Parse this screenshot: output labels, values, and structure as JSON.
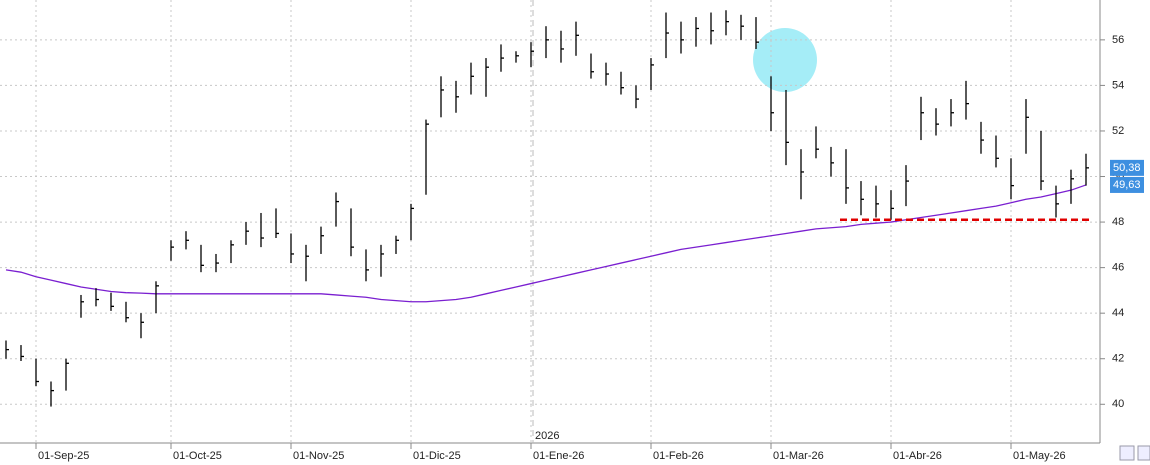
{
  "chart_data": {
    "type": "ohlc",
    "year_label": "2026",
    "categories": [
      null,
      null,
      "01-Sep-25",
      null,
      null,
      null,
      null,
      null,
      null,
      null,
      null,
      "01-Oct-25",
      null,
      null,
      null,
      null,
      null,
      null,
      null,
      "01-Nov-25",
      null,
      null,
      null,
      null,
      null,
      null,
      null,
      "01-Dic-25",
      null,
      null,
      null,
      null,
      null,
      null,
      null,
      "01-Ene-26",
      null,
      null,
      null,
      null,
      null,
      null,
      null,
      "01-Feb-26",
      null,
      null,
      null,
      null,
      null,
      null,
      null,
      "01-Mar-26",
      null,
      null,
      null,
      null,
      null,
      null,
      null,
      "01-Abr-26",
      null,
      null,
      null,
      null,
      null,
      null,
      null,
      "01-May-26",
      null,
      null,
      null,
      null,
      null
    ],
    "ohlc": {
      "color": "#000000",
      "high": [
        42.8,
        42.6,
        42.0,
        41.0,
        42.0,
        44.8,
        45.1,
        44.9,
        44.5,
        44.0,
        45.4,
        47.2,
        47.6,
        47.0,
        46.6,
        47.2,
        48.0,
        48.4,
        48.6,
        47.5,
        47.0,
        47.8,
        49.3,
        48.6,
        46.8,
        47.0,
        47.4,
        48.8,
        52.5,
        54.4,
        54.2,
        55.0,
        55.2,
        55.8,
        55.5,
        55.9,
        56.6,
        56.4,
        56.8,
        55.4,
        55.0,
        54.6,
        54.0,
        55.2,
        57.2,
        56.8,
        57.0,
        57.2,
        57.3,
        57.1,
        57.0,
        54.4,
        53.8,
        51.2,
        52.2,
        51.3,
        51.2,
        49.8,
        49.6,
        49.4,
        50.5,
        53.5,
        53.0,
        53.4,
        54.2,
        52.4,
        51.8,
        50.8,
        53.4,
        52.0,
        49.6,
        50.3,
        51.0
      ],
      "low": [
        42.0,
        41.9,
        40.8,
        39.9,
        40.6,
        43.8,
        44.3,
        44.1,
        43.6,
        42.9,
        44.0,
        46.3,
        46.8,
        45.8,
        45.8,
        46.2,
        47.0,
        46.9,
        47.3,
        46.2,
        45.4,
        46.6,
        47.8,
        46.5,
        45.4,
        45.6,
        46.6,
        47.2,
        49.2,
        52.6,
        52.8,
        53.6,
        53.5,
        54.6,
        55.0,
        54.8,
        55.2,
        55.0,
        55.3,
        54.3,
        54.0,
        53.6,
        53.0,
        53.8,
        55.2,
        55.4,
        55.7,
        55.8,
        56.2,
        56.0,
        55.6,
        52.0,
        50.5,
        49.0,
        50.8,
        50.0,
        48.8,
        48.3,
        48.2,
        48.1,
        48.7,
        51.6,
        51.8,
        52.2,
        52.5,
        51.0,
        50.4,
        49.0,
        51.0,
        49.4,
        48.2,
        48.8,
        49.6
      ],
      "close": [
        42.4,
        42.1,
        41.0,
        40.6,
        41.8,
        44.5,
        44.6,
        44.3,
        43.8,
        43.6,
        45.2,
        46.9,
        47.2,
        46.1,
        46.2,
        47.0,
        47.6,
        47.3,
        47.5,
        46.6,
        46.5,
        47.4,
        48.9,
        46.9,
        45.9,
        46.6,
        47.2,
        48.6,
        52.3,
        53.8,
        53.5,
        54.4,
        54.8,
        55.2,
        55.3,
        55.5,
        56.0,
        55.6,
        56.2,
        54.6,
        54.5,
        53.9,
        53.4,
        54.9,
        56.3,
        56.0,
        56.5,
        56.4,
        56.8,
        56.6,
        55.9,
        52.8,
        51.5,
        50.2,
        51.2,
        50.6,
        49.5,
        49.0,
        48.8,
        48.6,
        49.8,
        52.8,
        52.3,
        52.8,
        53.2,
        51.6,
        50.8,
        49.6,
        52.6,
        49.8,
        48.8,
        49.9,
        50.38
      ]
    },
    "lines": [
      {
        "color": "#7a1fd0",
        "values": [
          45.9,
          45.8,
          45.6,
          45.45,
          45.3,
          45.15,
          45.05,
          44.95,
          44.9,
          44.88,
          44.85,
          44.85,
          44.85,
          44.85,
          44.85,
          44.85,
          44.85,
          44.85,
          44.85,
          44.85,
          44.85,
          44.85,
          44.8,
          44.75,
          44.7,
          44.6,
          44.55,
          44.5,
          44.5,
          44.55,
          44.6,
          44.7,
          44.85,
          45.0,
          45.15,
          45.3,
          45.45,
          45.6,
          45.75,
          45.9,
          46.05,
          46.2,
          46.35,
          46.5,
          46.65,
          46.8,
          46.9,
          47.0,
          47.1,
          47.2,
          47.3,
          47.4,
          47.5,
          47.6,
          47.7,
          47.75,
          47.8,
          47.9,
          47.95,
          48.0,
          48.1,
          48.2,
          48.3,
          48.4,
          48.5,
          48.6,
          48.7,
          48.85,
          49.0,
          49.1,
          49.25,
          49.4,
          49.63
        ]
      }
    ],
    "reference_line": {
      "value": 48.1,
      "color": "#e00000"
    },
    "last_labels": [
      {
        "value": 50.38,
        "label": "50,38"
      },
      {
        "value": 49.63,
        "label": "49,63"
      }
    ],
    "last_label_color": "#3d8fe0",
    "ylim": [
      38.3,
      57.75
    ],
    "yticks": [
      40,
      42,
      44,
      46,
      48,
      50,
      52,
      54,
      56
    ],
    "grid": true
  }
}
